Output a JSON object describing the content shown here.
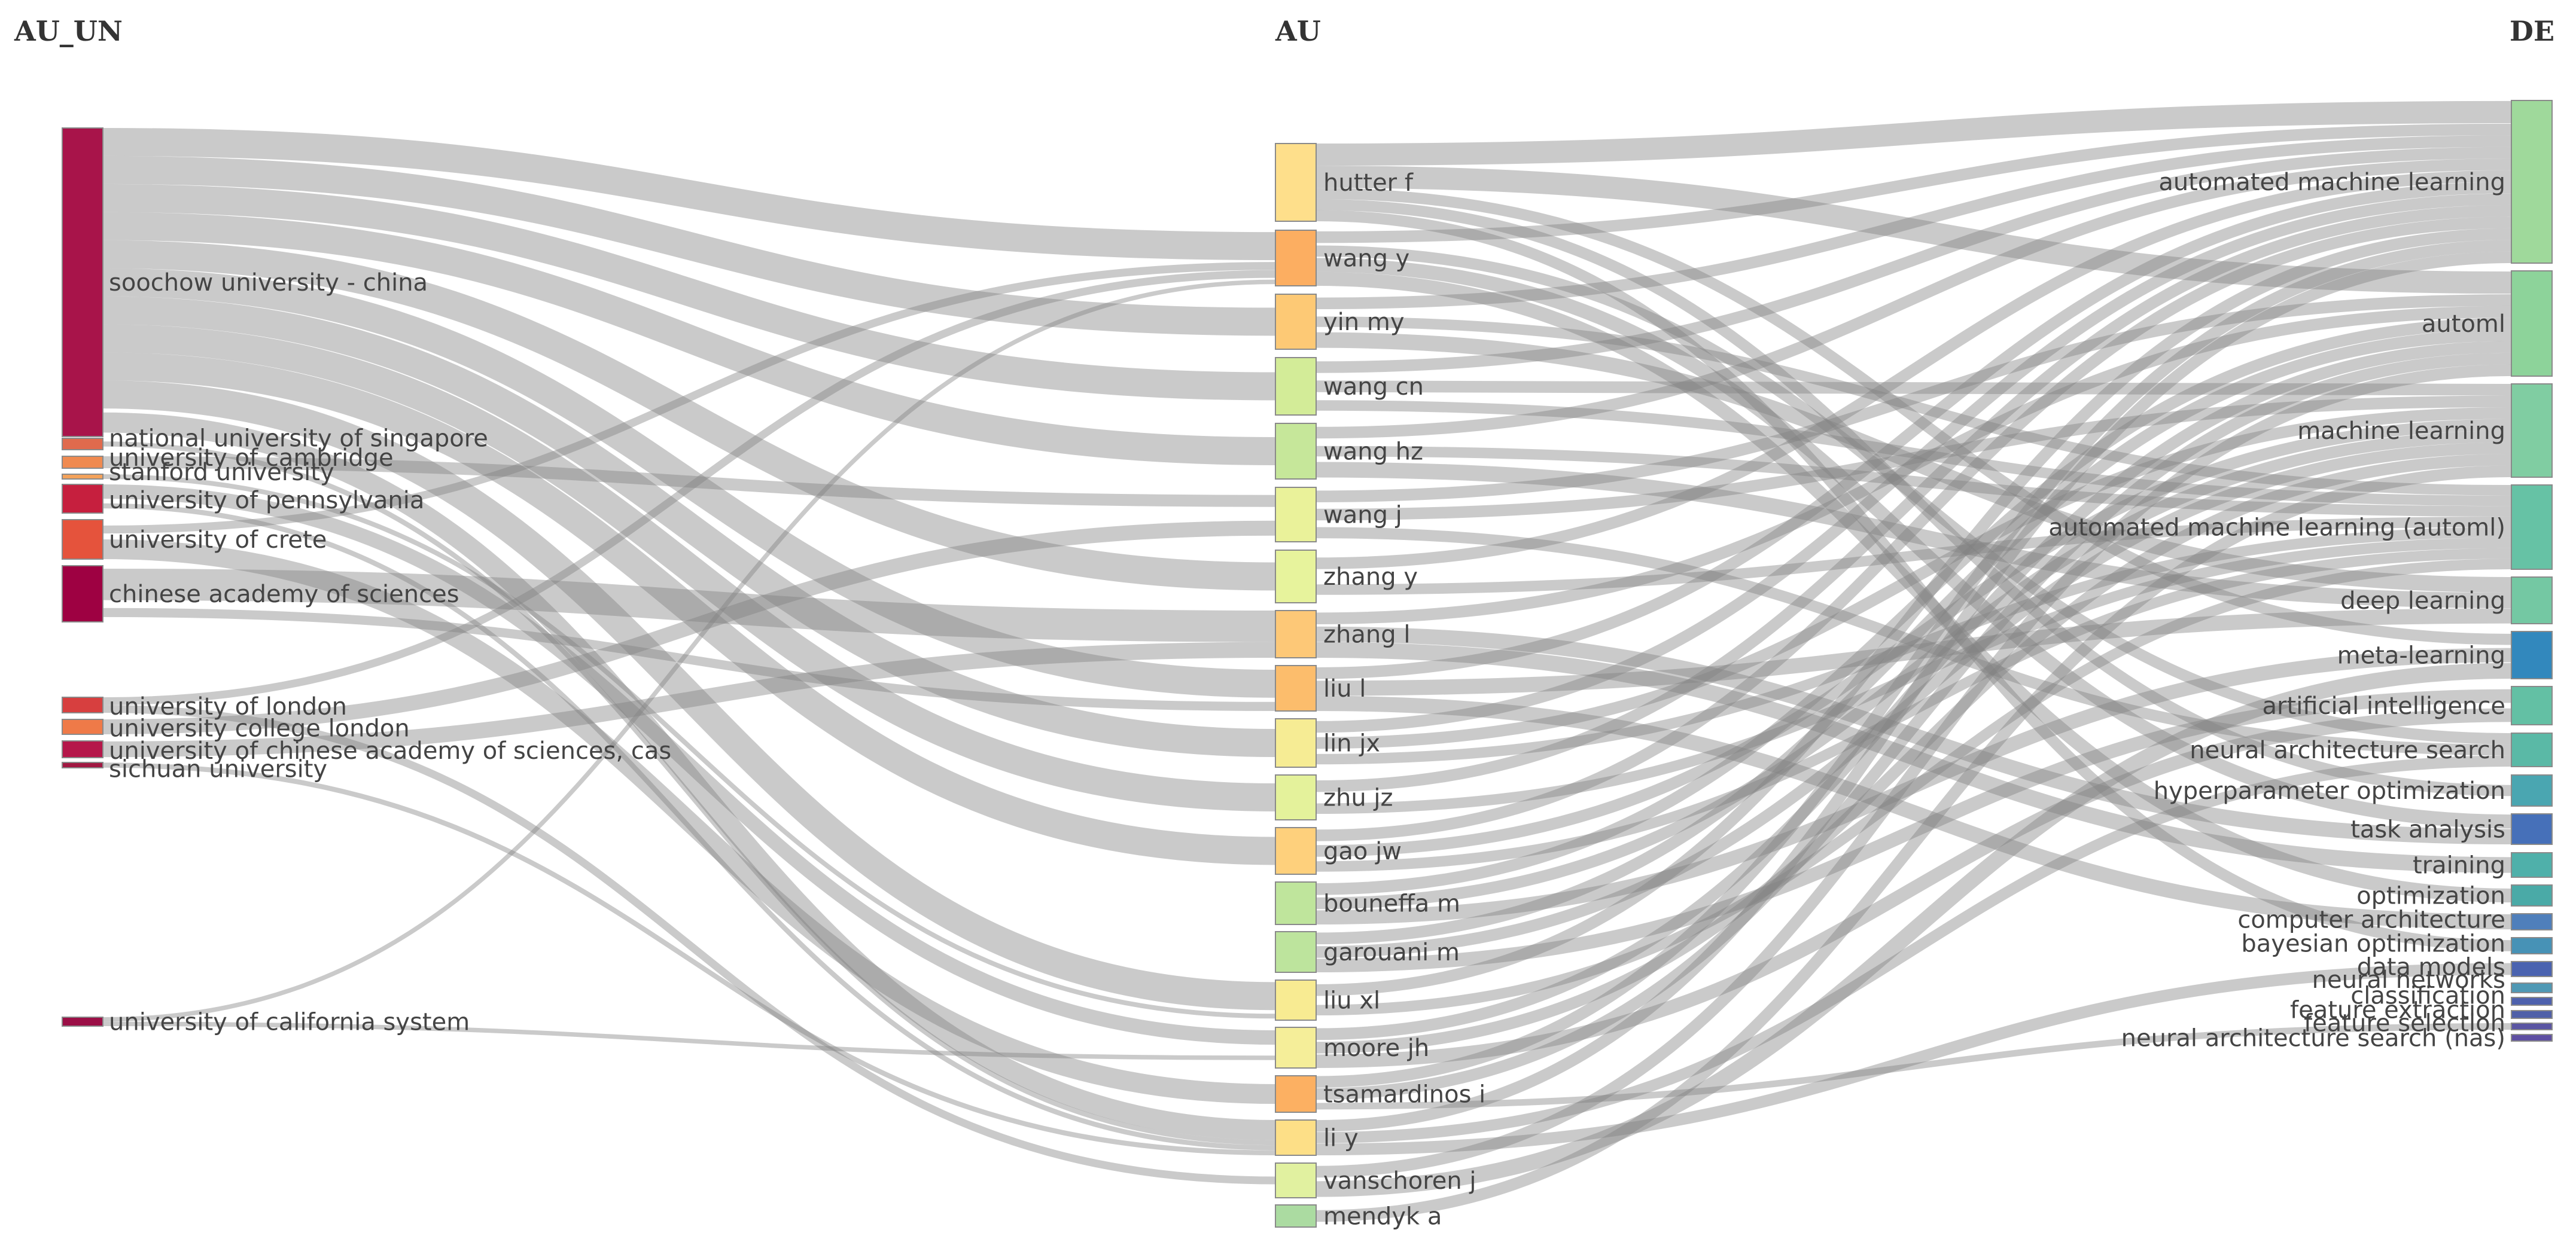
{
  "diagram": {
    "type": "three-field sankey",
    "columns": [
      {
        "id": "left",
        "title": "AU_UN"
      },
      {
        "id": "mid",
        "title": "AU"
      },
      {
        "id": "right",
        "title": "DE"
      }
    ]
  },
  "nodes": {
    "left": [
      {
        "id": "soochow",
        "label": "soochow university - china",
        "color": "#a8144a"
      },
      {
        "id": "nus",
        "label": "national university of singapore",
        "color": "#e06a4d"
      },
      {
        "id": "cambridge",
        "label": "university of cambridge",
        "color": "#f08a50"
      },
      {
        "id": "stanford",
        "label": "stanford university",
        "color": "#f4a25a"
      },
      {
        "id": "upenn",
        "label": "university of pennsylvania",
        "color": "#c61f3e"
      },
      {
        "id": "crete",
        "label": "university of crete",
        "color": "#e5533c"
      },
      {
        "id": "cas",
        "label": "chinese academy of sciences",
        "color": "#9e0142"
      },
      {
        "id": "london",
        "label": "university of london",
        "color": "#d73f3f"
      },
      {
        "id": "ucl",
        "label": "university college london",
        "color": "#ef7a48"
      },
      {
        "id": "ucas",
        "label": "university of chinese academy of sciences, cas",
        "color": "#b5174a"
      },
      {
        "id": "sichuan",
        "label": "sichuan university",
        "color": "#a11842"
      },
      {
        "id": "ucal",
        "label": "university of california system",
        "color": "#9b0f46"
      }
    ],
    "mid": [
      {
        "id": "hutter",
        "label": "hutter f",
        "color": "#fedf8b"
      },
      {
        "id": "wangy",
        "label": "wang y",
        "color": "#fcae61"
      },
      {
        "id": "yinmy",
        "label": "yin my",
        "color": "#fdc975"
      },
      {
        "id": "wangcn",
        "label": "wang cn",
        "color": "#d3ec98"
      },
      {
        "id": "wanghz",
        "label": "wang hz",
        "color": "#c6e79a"
      },
      {
        "id": "wangj",
        "label": "wang j",
        "color": "#eaf29a"
      },
      {
        "id": "zhangy",
        "label": "zhang y",
        "color": "#e7f39c"
      },
      {
        "id": "zhangl",
        "label": "zhang l",
        "color": "#fdc877"
      },
      {
        "id": "liul",
        "label": "liu l",
        "color": "#fcbd6c"
      },
      {
        "id": "linjx",
        "label": "lin jx",
        "color": "#f6ec94"
      },
      {
        "id": "zhujz",
        "label": "zhu jz",
        "color": "#e4f29b"
      },
      {
        "id": "gaojw",
        "label": "gao jw",
        "color": "#fed07c"
      },
      {
        "id": "bouneffa",
        "label": "bouneffa m",
        "color": "#bfe59c"
      },
      {
        "id": "garouani",
        "label": "garouani m",
        "color": "#bde49d"
      },
      {
        "id": "liuxl",
        "label": "liu xl",
        "color": "#f8eb92"
      },
      {
        "id": "moore",
        "label": "moore jh",
        "color": "#f5ee99"
      },
      {
        "id": "tsamardinos",
        "label": "tsamardinos i",
        "color": "#fcb062"
      },
      {
        "id": "liy",
        "label": "li y",
        "color": "#fddf87"
      },
      {
        "id": "vanschoren",
        "label": "vanschoren j",
        "color": "#e1f1a0"
      },
      {
        "id": "mendyk",
        "label": "mendyk a",
        "color": "#abdba1"
      }
    ],
    "right": [
      {
        "id": "aml",
        "label": "automated machine learning",
        "color": "#9fd99b"
      },
      {
        "id": "automl",
        "label": "automl",
        "color": "#8dd39a"
      },
      {
        "id": "ml",
        "label": "machine learning",
        "color": "#80cda2"
      },
      {
        "id": "amlp",
        "label": "automated machine learning (automl)",
        "color": "#66c2a5"
      },
      {
        "id": "dl",
        "label": "deep learning",
        "color": "#74c8a3"
      },
      {
        "id": "meta",
        "label": "meta-learning",
        "color": "#3288bd"
      },
      {
        "id": "ai",
        "label": "artificial intelligence",
        "color": "#63c0a4"
      },
      {
        "id": "nas",
        "label": "neural architecture search",
        "color": "#5ab9a6"
      },
      {
        "id": "hpo",
        "label": "hyperparameter optimization",
        "color": "#4aa6b1"
      },
      {
        "id": "task",
        "label": "task analysis",
        "color": "#4670b9"
      },
      {
        "id": "training",
        "label": "training",
        "color": "#4fb0aa"
      },
      {
        "id": "optim",
        "label": "optimization",
        "color": "#4aaaa7"
      },
      {
        "id": "comparch",
        "label": "computer architecture",
        "color": "#4f7fbb"
      },
      {
        "id": "bayes",
        "label": "bayesian optimization",
        "color": "#4792b6"
      },
      {
        "id": "datamodels",
        "label": "data models",
        "color": "#4a63b0"
      },
      {
        "id": "nn",
        "label": "neural networks",
        "color": "#4f98b4"
      },
      {
        "id": "classification",
        "label": "classification",
        "color": "#4e61ad"
      },
      {
        "id": "featext",
        "label": "feature extraction",
        "color": "#5060a8"
      },
      {
        "id": "featsel",
        "label": "feature selection",
        "color": "#5a55a2"
      },
      {
        "id": "nasp",
        "label": "neural architecture search (nas)",
        "color": "#5e4fa2"
      }
    ]
  },
  "flows": {
    "left_to_mid": [
      [
        "soochow",
        "wangy",
        4
      ],
      [
        "soochow",
        "yinmy",
        4
      ],
      [
        "soochow",
        "wangcn",
        4
      ],
      [
        "soochow",
        "wanghz",
        4
      ],
      [
        "soochow",
        "zhangy",
        4
      ],
      [
        "soochow",
        "liul",
        4
      ],
      [
        "soochow",
        "linjx",
        4
      ],
      [
        "soochow",
        "zhujz",
        4
      ],
      [
        "soochow",
        "gaojw",
        4
      ],
      [
        "soochow",
        "liuxl",
        4
      ],
      [
        "soochow",
        "liy",
        4
      ],
      [
        "nus",
        "liy",
        1
      ],
      [
        "cambridge",
        "wangj",
        1
      ],
      [
        "stanford",
        "liuxl",
        1
      ],
      [
        "upenn",
        "moore",
        1
      ],
      [
        "upenn",
        "liy",
        1
      ],
      [
        "crete",
        "tsamardinos",
        1
      ],
      [
        "crete",
        "wangy",
        1
      ],
      [
        "cas",
        "zhangl",
        2
      ],
      [
        "cas",
        "liul",
        1
      ],
      [
        "london",
        "wangy",
        1
      ],
      [
        "london",
        "vanschoren",
        1
      ],
      [
        "ucl",
        "wangj",
        1
      ],
      [
        "ucas",
        "zhangl",
        1
      ],
      [
        "sichuan",
        "liy",
        1
      ],
      [
        "ucal",
        "wangy",
        1
      ],
      [
        "ucal",
        "moore",
        1
      ]
    ],
    "mid_to_right": [
      [
        "hutter",
        "aml",
        2
      ],
      [
        "hutter",
        "automl",
        2
      ],
      [
        "hutter",
        "meta",
        1
      ],
      [
        "hutter",
        "hpo",
        1
      ],
      [
        "hutter",
        "bayes",
        1
      ],
      [
        "wangy",
        "aml",
        1
      ],
      [
        "wangy",
        "task",
        1
      ],
      [
        "wangy",
        "nas",
        1
      ],
      [
        "wangy",
        "optim",
        1
      ],
      [
        "yinmy",
        "aml",
        1
      ],
      [
        "yinmy",
        "amlp",
        1
      ],
      [
        "yinmy",
        "dl",
        1
      ],
      [
        "wangcn",
        "aml",
        1
      ],
      [
        "wangcn",
        "amlp",
        1
      ],
      [
        "wangcn",
        "ml",
        1
      ],
      [
        "wanghz",
        "aml",
        1
      ],
      [
        "wanghz",
        "amlp",
        1
      ],
      [
        "wanghz",
        "dl",
        1
      ],
      [
        "wangj",
        "automl",
        1
      ],
      [
        "wangj",
        "ml",
        1
      ],
      [
        "wangj",
        "nas",
        1
      ],
      [
        "zhangy",
        "aml",
        1
      ],
      [
        "zhangy",
        "amlp",
        1
      ],
      [
        "zhangl",
        "automl",
        1
      ],
      [
        "zhangl",
        "task",
        1
      ],
      [
        "zhangl",
        "training",
        1
      ],
      [
        "liul",
        "aml",
        1
      ],
      [
        "liul",
        "dl",
        1
      ],
      [
        "liul",
        "comparch",
        1
      ],
      [
        "linjx",
        "aml",
        1
      ],
      [
        "linjx",
        "amlp",
        1
      ],
      [
        "linjx",
        "ml",
        1
      ],
      [
        "zhujz",
        "aml",
        1
      ],
      [
        "zhujz",
        "amlp",
        1
      ],
      [
        "gaojw",
        "aml",
        1
      ],
      [
        "gaojw",
        "amlp",
        1
      ],
      [
        "gaojw",
        "ml",
        1
      ],
      [
        "bouneffa",
        "automl",
        1
      ],
      [
        "bouneffa",
        "ml",
        1
      ],
      [
        "bouneffa",
        "meta",
        1
      ],
      [
        "garouani",
        "automl",
        1
      ],
      [
        "garouani",
        "ml",
        1
      ],
      [
        "garouani",
        "ai",
        1
      ],
      [
        "liuxl",
        "aml",
        1
      ],
      [
        "liuxl",
        "amlp",
        1
      ],
      [
        "moore",
        "automl",
        1
      ],
      [
        "moore",
        "ml",
        1
      ],
      [
        "moore",
        "ai",
        1
      ],
      [
        "tsamardinos",
        "aml",
        1
      ],
      [
        "tsamardinos",
        "automl",
        1
      ],
      [
        "tsamardinos",
        "featsel",
        1
      ],
      [
        "liy",
        "aml",
        1
      ],
      [
        "liy",
        "nas",
        1
      ],
      [
        "liy",
        "datamodels",
        1
      ],
      [
        "vanschoren",
        "automl",
        1
      ],
      [
        "vanschoren",
        "meta",
        1
      ],
      [
        "mendyk",
        "ml",
        1
      ]
    ]
  }
}
